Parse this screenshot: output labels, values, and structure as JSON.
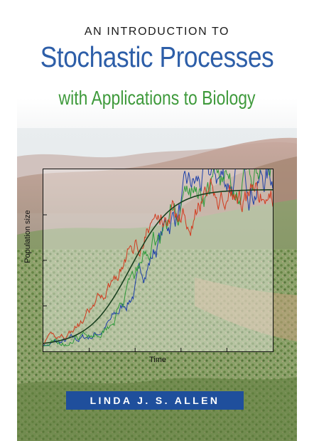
{
  "book": {
    "title_pre": "AN INTRODUCTION TO",
    "title_main": "Stochastic Processes",
    "title_sub": "with Applications to Biology",
    "author": "LINDA J. S. ALLEN"
  },
  "figure": {
    "xlabel": "Time",
    "ylabel": "Population size"
  },
  "colors": {
    "title_main": "#2d5ea8",
    "title_sub": "#3f9a3c",
    "author_bar": "#1f4f9c",
    "series": [
      "#1d3fa8",
      "#2e9a3a",
      "#d23a1e",
      "#1a4020"
    ]
  }
}
